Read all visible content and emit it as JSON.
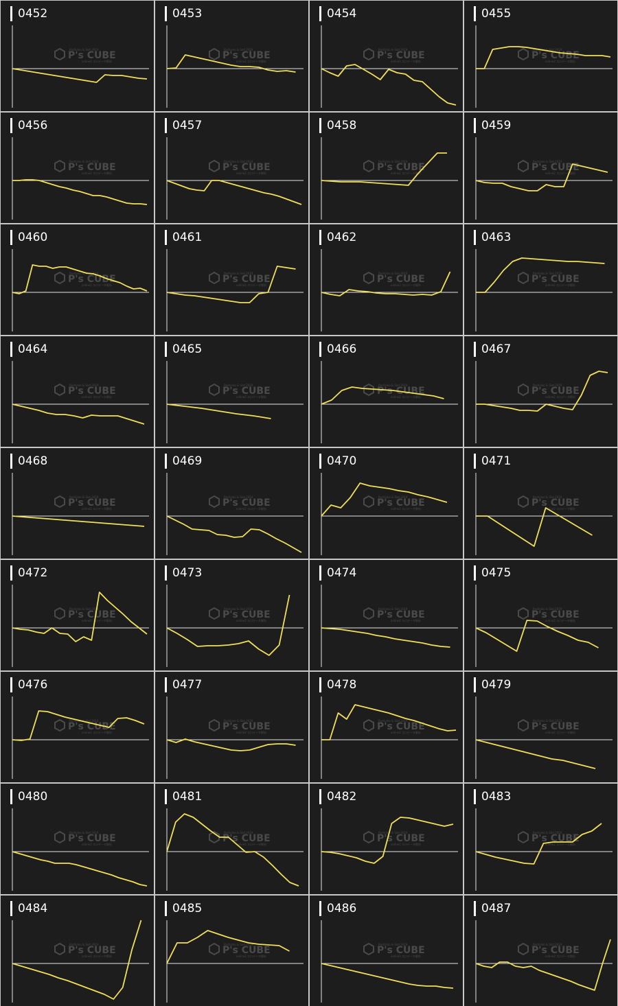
{
  "line_color": "#f3e05a",
  "watermark": {
    "brand": "P's CUBE",
    "top_text": "Pachinko & Slot 2019",
    "bottom_text": "online2 スロデータ解析"
  },
  "chart_data": [
    {
      "type": "line",
      "title": "0452",
      "values": [
        0,
        -2,
        -4,
        -6,
        -8,
        -10,
        -12,
        -14,
        -16,
        -18,
        -20,
        -9,
        -10,
        -10,
        -12,
        -14,
        -15
      ]
    },
    {
      "type": "line",
      "title": "0453",
      "values": [
        0,
        1,
        20,
        17,
        14,
        11,
        8,
        5,
        3,
        3,
        2,
        -2,
        -4,
        -3,
        -5
      ]
    },
    {
      "type": "line",
      "title": "0454",
      "values": [
        0,
        -6,
        -11,
        4,
        6,
        -1,
        -8,
        -16,
        -1,
        -6,
        -8,
        -17,
        -19,
        -30,
        -41,
        -50,
        -53
      ]
    },
    {
      "type": "line",
      "title": "0455",
      "values": [
        0,
        0,
        28,
        30,
        32,
        32,
        31,
        29,
        27,
        25,
        23,
        22,
        21,
        19,
        19,
        19,
        17
      ]
    },
    {
      "type": "line",
      "title": "0456",
      "values": [
        0,
        0,
        1,
        1,
        0,
        -3,
        -6,
        -9,
        -11,
        -14,
        -16,
        -19,
        -22,
        -22,
        -24,
        -27,
        -30,
        -33,
        -34,
        -34,
        -35
      ]
    },
    {
      "type": "line",
      "title": "0457",
      "values": [
        0,
        -4,
        -8,
        -12,
        -14,
        -15,
        0,
        0,
        -3,
        -6,
        -9,
        -12,
        -15,
        -18,
        -20,
        -23,
        -27,
        -31,
        -35
      ]
    },
    {
      "type": "line",
      "title": "0458",
      "values": [
        0,
        -1,
        -2,
        -2,
        -2,
        -3,
        -4,
        -5,
        -6,
        -7,
        10,
        25,
        40,
        40
      ]
    },
    {
      "type": "line",
      "title": "0459",
      "values": [
        0,
        -3,
        -4,
        -4,
        -9,
        -12,
        -15,
        -15,
        -6,
        -9,
        -9,
        24,
        21,
        18,
        15,
        12
      ]
    },
    {
      "type": "line",
      "title": "0460",
      "values": [
        0,
        -2,
        2,
        40,
        38,
        38,
        35,
        37,
        37,
        34,
        31,
        28,
        27,
        24,
        20,
        17,
        14,
        9,
        5,
        6,
        2
      ]
    },
    {
      "type": "line",
      "title": "0461",
      "values": [
        0,
        -2,
        -4,
        -5,
        -7,
        -9,
        -11,
        -13,
        -15,
        -15,
        -2,
        0,
        38,
        36,
        34
      ]
    },
    {
      "type": "line",
      "title": "0462",
      "values": [
        0,
        -3,
        -5,
        4,
        2,
        1,
        -1,
        -2,
        -2,
        -3,
        -4,
        -3,
        -4,
        1,
        30
      ]
    },
    {
      "type": "line",
      "title": "0463",
      "values": [
        0,
        0,
        15,
        32,
        45,
        50,
        49,
        48,
        47,
        46,
        45,
        45,
        44,
        43,
        42
      ]
    },
    {
      "type": "line",
      "title": "0464",
      "values": [
        0,
        -3,
        -6,
        -9,
        -13,
        -15,
        -15,
        -17,
        -20,
        -16,
        -17,
        -17,
        -17,
        -21,
        -25,
        -29
      ]
    },
    {
      "type": "line",
      "title": "0465",
      "values": [
        0,
        -3,
        -6,
        -10,
        -14,
        -17,
        -21
      ]
    },
    {
      "type": "line",
      "title": "0466",
      "values": [
        0,
        6,
        20,
        25,
        23,
        22,
        21,
        20,
        18,
        16,
        14,
        12,
        8
      ]
    },
    {
      "type": "line",
      "title": "0467",
      "values": [
        0,
        0,
        -2,
        -4,
        -6,
        -9,
        -9,
        -10,
        0,
        -3,
        -6,
        -8,
        13,
        42,
        48,
        46
      ]
    },
    {
      "type": "line",
      "title": "0468",
      "values": [
        0,
        -1,
        -2,
        -3,
        -4,
        -5,
        -6,
        -7,
        -8,
        -9,
        -10,
        -11,
        -12,
        -13,
        -14,
        -15
      ]
    },
    {
      "type": "line",
      "title": "0469",
      "values": [
        0,
        -6,
        -12,
        -19,
        -20,
        -21,
        -27,
        -28,
        -31,
        -30,
        -19,
        -20,
        -26,
        -33,
        -39,
        -46,
        -53
      ]
    },
    {
      "type": "line",
      "title": "0470",
      "values": [
        0,
        16,
        12,
        27,
        48,
        44,
        42,
        40,
        37,
        35,
        31,
        28,
        24,
        20
      ]
    },
    {
      "type": "line",
      "title": "0471",
      "values": [
        0,
        0,
        -11,
        -22,
        -33,
        -44,
        12,
        2,
        -8,
        -18,
        -28
      ]
    },
    {
      "type": "line",
      "title": "0472",
      "values": [
        0,
        -2,
        -3,
        -6,
        -8,
        0,
        -8,
        -9,
        -20,
        -13,
        -18,
        52,
        40,
        30,
        20,
        9,
        0,
        -9
      ]
    },
    {
      "type": "line",
      "title": "0473",
      "values": [
        0,
        -8,
        -17,
        -27,
        -26,
        -26,
        -25,
        -23,
        -19,
        -31,
        -40,
        -25,
        48
      ]
    },
    {
      "type": "line",
      "title": "0474",
      "values": [
        0,
        -1,
        -2,
        -4,
        -6,
        -8,
        -11,
        -13,
        -16,
        -18,
        -20,
        -22,
        -25,
        -27,
        -28
      ]
    },
    {
      "type": "line",
      "title": "0475",
      "values": [
        0,
        -7,
        -16,
        -25,
        -34,
        11,
        10,
        2,
        -5,
        -11,
        -18,
        -21,
        -29
      ]
    },
    {
      "type": "line",
      "title": "0476",
      "values": [
        0,
        -1,
        1,
        42,
        41,
        37,
        33,
        30,
        27,
        24,
        21,
        18,
        31,
        32,
        28,
        23
      ]
    },
    {
      "type": "line",
      "title": "0477",
      "values": [
        0,
        -4,
        1,
        -3,
        -6,
        -9,
        -12,
        -15,
        -16,
        -15,
        -11,
        -7,
        -6,
        -6,
        -8
      ]
    },
    {
      "type": "line",
      "title": "0478",
      "values": [
        0,
        0,
        39,
        30,
        51,
        48,
        45,
        42,
        39,
        35,
        31,
        28,
        24,
        20,
        16,
        13,
        14
      ]
    },
    {
      "type": "line",
      "title": "0479",
      "values": [
        0,
        -4,
        -8,
        -12,
        -16,
        -20,
        -24,
        -28,
        -30,
        -34,
        -38,
        -42
      ]
    },
    {
      "type": "line",
      "title": "0480",
      "values": [
        0,
        -3,
        -6,
        -9,
        -12,
        -14,
        -17,
        -17,
        -17,
        -19,
        -22,
        -25,
        -28,
        -31,
        -34,
        -38,
        -41,
        -44,
        -48,
        -50
      ]
    },
    {
      "type": "line",
      "title": "0481",
      "values": [
        0,
        43,
        55,
        50,
        40,
        30,
        21,
        21,
        10,
        -1,
        0,
        -8,
        -20,
        -33,
        -45,
        -50
      ]
    },
    {
      "type": "line",
      "title": "0482",
      "values": [
        0,
        -1,
        -3,
        -6,
        -9,
        -14,
        -17,
        -7,
        41,
        50,
        49,
        46,
        43,
        40,
        37,
        40
      ]
    },
    {
      "type": "line",
      "title": "0483",
      "values": [
        0,
        -4,
        -8,
        -11,
        -14,
        -17,
        -18,
        12,
        14,
        14,
        14,
        25,
        30,
        41
      ]
    },
    {
      "type": "line",
      "title": "0484",
      "values": [
        0,
        -4,
        -8,
        -12,
        -16,
        -21,
        -25,
        -30,
        -35,
        -40,
        -45,
        -52,
        -35,
        20,
        68
      ]
    },
    {
      "type": "line",
      "title": "0485",
      "values": [
        0,
        30,
        30,
        38,
        48,
        43,
        38,
        34,
        30,
        28,
        27,
        26,
        18
      ]
    },
    {
      "type": "line",
      "title": "0486",
      "values": [
        0,
        -3,
        -6,
        -9,
        -12,
        -15,
        -18,
        -21,
        -24,
        -27,
        -30,
        -32,
        -33,
        -33,
        -35,
        -36
      ]
    },
    {
      "type": "line",
      "title": "0487",
      "values": [
        0,
        -4,
        -6,
        2,
        2,
        -4,
        -6,
        -4,
        -10,
        -14,
        -18,
        -22,
        -26,
        -31,
        -35,
        -39,
        0,
        35
      ]
    }
  ]
}
